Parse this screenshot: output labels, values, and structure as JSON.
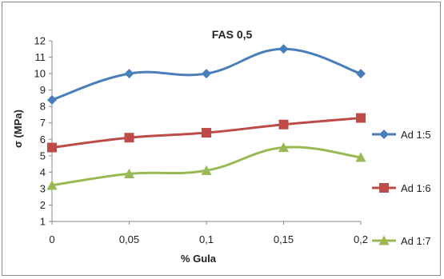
{
  "chart_data": {
    "type": "line",
    "title": "FAS 0,5",
    "xlabel": "% Gula",
    "ylabel": "σ (MPa)",
    "categories": [
      "0",
      "0,05",
      "0,1",
      "0,15",
      "0,2"
    ],
    "ylim": [
      1,
      12
    ],
    "yticks": [
      "1",
      "2",
      "3",
      "4",
      "5",
      "6",
      "7",
      "8",
      "9",
      "10",
      "11",
      "12"
    ],
    "grid": false,
    "legend_position": "right",
    "series": [
      {
        "name": "Ad 1:5",
        "color": "#4a7ebb",
        "marker": "diamond",
        "values": [
          8.4,
          10.0,
          10.0,
          11.5,
          10.0
        ]
      },
      {
        "name": "Ad 1:6",
        "color": "#be4b48",
        "marker": "square",
        "values": [
          5.5,
          6.1,
          6.4,
          6.9,
          7.3
        ]
      },
      {
        "name": "Ad 1:7",
        "color": "#98b954",
        "marker": "triangle",
        "values": [
          3.2,
          3.9,
          4.1,
          5.5,
          4.9
        ]
      }
    ]
  }
}
